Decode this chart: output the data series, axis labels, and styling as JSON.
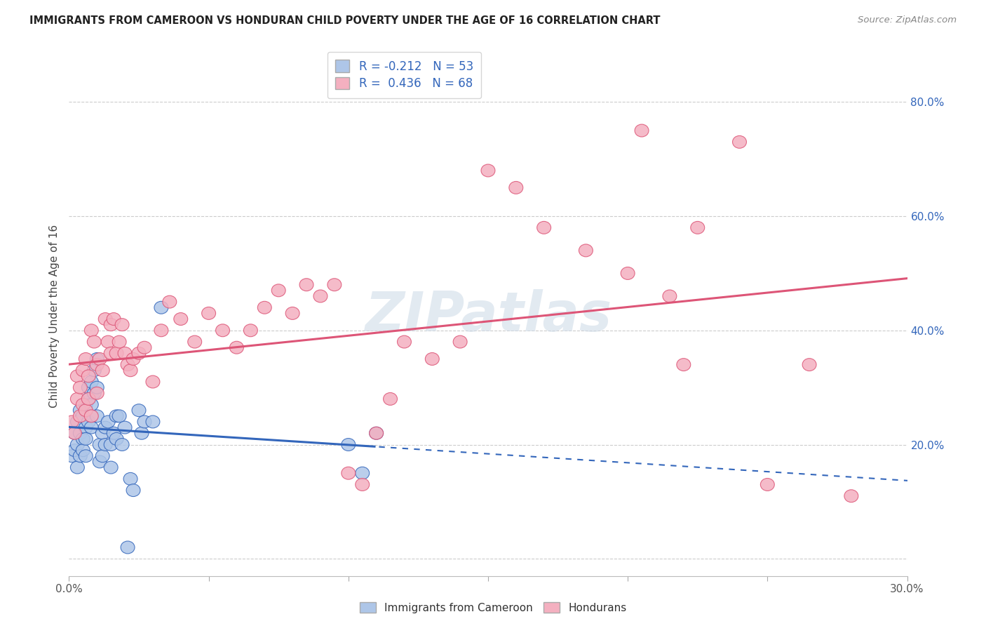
{
  "title": "IMMIGRANTS FROM CAMEROON VS HONDURAN CHILD POVERTY UNDER THE AGE OF 16 CORRELATION CHART",
  "source": "Source: ZipAtlas.com",
  "ylabel": "Child Poverty Under the Age of 16",
  "xlim": [
    0.0,
    0.3
  ],
  "ylim": [
    -0.03,
    0.88
  ],
  "yticks": [
    0.0,
    0.2,
    0.4,
    0.6,
    0.8
  ],
  "ytick_labels": [
    "",
    "20.0%",
    "40.0%",
    "60.0%",
    "80.0%"
  ],
  "xticks": [
    0.0,
    0.05,
    0.1,
    0.15,
    0.2,
    0.25,
    0.3
  ],
  "xtick_labels": [
    "0.0%",
    "",
    "",
    "",
    "",
    "",
    "30.0%"
  ],
  "legend_label1": "R = -0.212   N = 53",
  "legend_label2": "R =  0.436   N = 68",
  "legend_sublabel1": "Immigrants from Cameroon",
  "legend_sublabel2": "Hondurans",
  "color_blue": "#aec6e8",
  "color_pink": "#f4b0c0",
  "line_color_blue": "#3366bb",
  "line_color_pink": "#dd5577",
  "watermark_color": "#d0dce8",
  "cameroon_x": [
    0.001,
    0.002,
    0.002,
    0.003,
    0.003,
    0.003,
    0.004,
    0.004,
    0.004,
    0.005,
    0.005,
    0.005,
    0.006,
    0.006,
    0.006,
    0.006,
    0.007,
    0.007,
    0.007,
    0.008,
    0.008,
    0.008,
    0.009,
    0.009,
    0.01,
    0.01,
    0.01,
    0.011,
    0.011,
    0.012,
    0.012,
    0.013,
    0.013,
    0.014,
    0.015,
    0.015,
    0.016,
    0.017,
    0.017,
    0.018,
    0.019,
    0.02,
    0.021,
    0.022,
    0.023,
    0.025,
    0.026,
    0.027,
    0.03,
    0.033,
    0.1,
    0.105,
    0.11
  ],
  "cameroon_y": [
    0.18,
    0.22,
    0.19,
    0.24,
    0.2,
    0.16,
    0.26,
    0.22,
    0.18,
    0.25,
    0.21,
    0.19,
    0.27,
    0.23,
    0.21,
    0.18,
    0.3,
    0.28,
    0.24,
    0.31,
    0.27,
    0.23,
    0.33,
    0.29,
    0.35,
    0.3,
    0.25,
    0.2,
    0.17,
    0.22,
    0.18,
    0.23,
    0.2,
    0.24,
    0.2,
    0.16,
    0.22,
    0.25,
    0.21,
    0.25,
    0.2,
    0.23,
    0.02,
    0.14,
    0.12,
    0.26,
    0.22,
    0.24,
    0.24,
    0.44,
    0.2,
    0.15,
    0.22
  ],
  "honduran_x": [
    0.001,
    0.002,
    0.003,
    0.003,
    0.004,
    0.004,
    0.005,
    0.005,
    0.006,
    0.006,
    0.007,
    0.007,
    0.008,
    0.008,
    0.009,
    0.01,
    0.01,
    0.011,
    0.012,
    0.013,
    0.014,
    0.015,
    0.015,
    0.016,
    0.017,
    0.018,
    0.019,
    0.02,
    0.021,
    0.022,
    0.023,
    0.025,
    0.027,
    0.03,
    0.033,
    0.036,
    0.04,
    0.045,
    0.05,
    0.055,
    0.06,
    0.065,
    0.07,
    0.075,
    0.08,
    0.085,
    0.09,
    0.095,
    0.1,
    0.105,
    0.11,
    0.115,
    0.12,
    0.13,
    0.14,
    0.15,
    0.16,
    0.17,
    0.185,
    0.2,
    0.205,
    0.215,
    0.22,
    0.225,
    0.24,
    0.25,
    0.265,
    0.28
  ],
  "honduran_y": [
    0.24,
    0.22,
    0.28,
    0.32,
    0.25,
    0.3,
    0.27,
    0.33,
    0.26,
    0.35,
    0.28,
    0.32,
    0.25,
    0.4,
    0.38,
    0.29,
    0.34,
    0.35,
    0.33,
    0.42,
    0.38,
    0.41,
    0.36,
    0.42,
    0.36,
    0.38,
    0.41,
    0.36,
    0.34,
    0.33,
    0.35,
    0.36,
    0.37,
    0.31,
    0.4,
    0.45,
    0.42,
    0.38,
    0.43,
    0.4,
    0.37,
    0.4,
    0.44,
    0.47,
    0.43,
    0.48,
    0.46,
    0.48,
    0.15,
    0.13,
    0.22,
    0.28,
    0.38,
    0.35,
    0.38,
    0.68,
    0.65,
    0.58,
    0.54,
    0.5,
    0.75,
    0.46,
    0.34,
    0.58,
    0.73,
    0.13,
    0.34,
    0.11
  ]
}
